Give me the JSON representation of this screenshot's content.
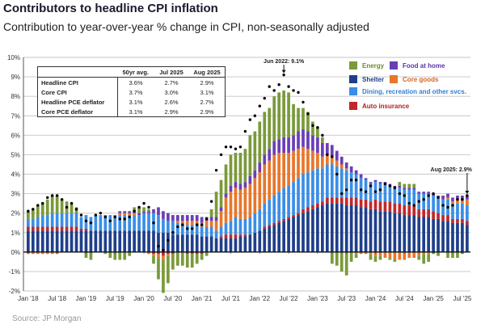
{
  "title": "Contributors to headline CPI inflation",
  "subtitle": "Contribution to year-over-year % change in CPI, non-seasonally adjusted",
  "source": "Source: JP Morgan",
  "table": {
    "headers": [
      "",
      "50yr avg.",
      "Jul 2025",
      "Aug 2025"
    ],
    "rows": [
      {
        "label": "Headline CPI",
        "values": [
          "3.6%",
          "2.7%",
          "2.9%"
        ]
      },
      {
        "label": "Core CPI",
        "values": [
          "3.7%",
          "3.0%",
          "3.1%"
        ]
      },
      {
        "label": "Headline PCE deflator",
        "values": [
          "3.1%",
          "2.6%",
          "2.7%"
        ]
      },
      {
        "label": "Core PCE deflator",
        "values": [
          "3.1%",
          "2.9%",
          "2.9%"
        ]
      }
    ]
  },
  "colors": {
    "energy": "#7a9a3a",
    "food": "#6a3fb5",
    "shelter": "#1f3f8a",
    "core_goods": "#e8762a",
    "services": "#3a8ee6",
    "auto": "#c0282b",
    "headline": "#000000"
  },
  "chart_data": {
    "type": "bar",
    "stacked": true,
    "title": "Contributors to headline CPI inflation",
    "subtitle": "Contribution to year-over-year % change in CPI, non-seasonally adjusted",
    "xlabel": "",
    "ylabel": "",
    "ylim": [
      -2,
      10
    ],
    "yticks": [
      "-2%",
      "-1%",
      "0%",
      "1%",
      "2%",
      "3%",
      "4%",
      "5%",
      "6%",
      "7%",
      "8%",
      "9%",
      "10%"
    ],
    "xticks": [
      "Jan '18",
      "Jul '18",
      "Jan '19",
      "Jul '19",
      "Jan '20",
      "Jul '20",
      "Jan '21",
      "Jul '21",
      "Jan '22",
      "Jul '22",
      "Jan '23",
      "Jul '23",
      "Jan '24",
      "Jul '24",
      "Jan '25",
      "Jul '25"
    ],
    "x_start": "Jan 2018",
    "x_end": "Aug 2025",
    "grid": true,
    "legend_position": "top-right",
    "legend": [
      {
        "key": "energy",
        "label": "Energy"
      },
      {
        "key": "food",
        "label": "Food at home"
      },
      {
        "key": "shelter",
        "label": "Shelter"
      },
      {
        "key": "core_goods",
        "label": "Core goods"
      },
      {
        "key": "services",
        "label": "Dining, recreation and other svcs."
      },
      {
        "key": "auto",
        "label": "Auto insurance"
      }
    ],
    "annotations": [
      {
        "label": "Jun 2022: 9.1%",
        "month_index": 53
      },
      {
        "label": "Aug 2025: 2.9%",
        "month_index": 91
      }
    ],
    "series": [
      {
        "name": "Shelter",
        "key": "shelter",
        "values": [
          1.1,
          1.1,
          1.1,
          1.1,
          1.1,
          1.1,
          1.1,
          1.1,
          1.1,
          1.1,
          1.1,
          1.1,
          1.1,
          1.1,
          1.1,
          1.1,
          1.1,
          1.1,
          1.1,
          1.1,
          1.1,
          1.1,
          1.1,
          1.1,
          1.1,
          1.1,
          1.1,
          1.0,
          1.0,
          1.0,
          0.9,
          0.9,
          0.9,
          0.9,
          0.9,
          0.9,
          0.8,
          0.8,
          0.8,
          0.7,
          0.7,
          0.7,
          0.7,
          0.7,
          0.8,
          0.8,
          0.9,
          1.0,
          1.1,
          1.2,
          1.3,
          1.4,
          1.5,
          1.6,
          1.7,
          1.8,
          1.9,
          2.0,
          2.1,
          2.2,
          2.3,
          2.4,
          2.5,
          2.5,
          2.5,
          2.5,
          2.4,
          2.4,
          2.4,
          2.3,
          2.3,
          2.2,
          2.2,
          2.1,
          2.1,
          2.1,
          2.0,
          2.0,
          1.9,
          1.9,
          1.9,
          1.8,
          1.8,
          1.8,
          1.7,
          1.7,
          1.6,
          1.6,
          1.5,
          1.5,
          1.5,
          1.4
        ]
      },
      {
        "name": "Auto insurance",
        "key": "auto",
        "values": [
          0.2,
          0.2,
          0.2,
          0.2,
          0.2,
          0.2,
          0.2,
          0.2,
          0.2,
          0.2,
          0.2,
          0.1,
          0.1,
          0.0,
          0.0,
          0.0,
          0.0,
          0.0,
          0.0,
          0.0,
          0.0,
          0.0,
          0.0,
          0.0,
          0.0,
          0.0,
          -0.1,
          -0.1,
          -0.2,
          -0.1,
          -0.1,
          0.0,
          0.0,
          -0.1,
          -0.1,
          -0.1,
          -0.1,
          0.0,
          0.0,
          0.0,
          0.1,
          0.2,
          0.2,
          0.2,
          0.1,
          0.1,
          0.0,
          0.0,
          0.0,
          0.1,
          0.1,
          0.1,
          0.1,
          0.1,
          0.1,
          0.1,
          0.1,
          0.2,
          0.2,
          0.2,
          0.2,
          0.2,
          0.3,
          0.3,
          0.3,
          0.3,
          0.4,
          0.4,
          0.4,
          0.4,
          0.4,
          0.4,
          0.5,
          0.5,
          0.5,
          0.5,
          0.5,
          0.5,
          0.5,
          0.5,
          0.5,
          0.4,
          0.4,
          0.4,
          0.4,
          0.3,
          0.3,
          0.3,
          0.2,
          0.2,
          0.2,
          0.2
        ]
      },
      {
        "name": "Dining, recreation and other svcs.",
        "key": "services",
        "values": [
          0.4,
          0.4,
          0.5,
          0.6,
          0.6,
          0.7,
          0.7,
          0.7,
          0.7,
          0.7,
          0.7,
          0.6,
          0.7,
          0.7,
          0.8,
          0.8,
          0.8,
          0.8,
          0.8,
          0.8,
          0.8,
          0.8,
          0.8,
          0.8,
          0.9,
          0.9,
          0.9,
          0.9,
          0.7,
          0.6,
          0.7,
          0.6,
          0.5,
          0.5,
          0.5,
          0.5,
          0.5,
          0.5,
          0.5,
          0.4,
          0.5,
          0.6,
          0.7,
          0.9,
          0.8,
          0.8,
          0.9,
          1.0,
          1.1,
          1.2,
          1.3,
          1.4,
          1.5,
          1.6,
          1.6,
          1.7,
          1.8,
          1.8,
          1.8,
          1.8,
          1.8,
          1.7,
          1.7,
          1.7,
          1.6,
          1.5,
          1.4,
          1.3,
          1.2,
          1.1,
          1.0,
          0.9,
          0.9,
          0.9,
          0.9,
          0.8,
          0.8,
          0.8,
          0.8,
          0.8,
          0.8,
          0.8,
          0.8,
          0.8,
          0.8,
          0.8,
          0.8,
          0.8,
          0.8,
          0.8,
          0.8,
          0.8
        ]
      },
      {
        "name": "Core goods",
        "key": "core_goods",
        "values": [
          -0.1,
          -0.1,
          -0.1,
          -0.1,
          -0.1,
          -0.1,
          -0.1,
          0.0,
          0.0,
          0.0,
          0.0,
          0.0,
          0.0,
          0.0,
          0.0,
          0.0,
          0.0,
          0.0,
          0.0,
          0.1,
          0.1,
          0.1,
          0.1,
          0.0,
          0.0,
          -0.1,
          -0.1,
          -0.2,
          -0.2,
          -0.1,
          0.0,
          0.1,
          0.2,
          0.2,
          0.2,
          0.2,
          0.2,
          0.3,
          0.3,
          0.5,
          0.8,
          1.3,
          1.5,
          1.5,
          1.5,
          1.6,
          1.7,
          1.8,
          1.9,
          2.0,
          2.0,
          2.1,
          2.0,
          1.8,
          1.7,
          1.6,
          1.5,
          1.4,
          1.2,
          1.0,
          0.8,
          0.6,
          0.5,
          0.4,
          0.3,
          0.2,
          0.1,
          0.0,
          -0.1,
          -0.1,
          -0.1,
          -0.1,
          -0.2,
          -0.2,
          -0.3,
          -0.3,
          -0.4,
          -0.4,
          -0.4,
          -0.3,
          -0.3,
          -0.2,
          -0.1,
          -0.1,
          0.0,
          0.0,
          0.0,
          0.1,
          0.1,
          0.2,
          0.2,
          0.3
        ]
      },
      {
        "name": "Food at home",
        "key": "food",
        "values": [
          0.0,
          0.0,
          0.0,
          0.0,
          0.0,
          0.0,
          0.0,
          0.0,
          0.0,
          0.0,
          0.0,
          0.0,
          0.0,
          0.0,
          0.0,
          0.0,
          0.0,
          0.0,
          0.0,
          0.1,
          0.1,
          0.1,
          0.1,
          0.1,
          0.1,
          0.1,
          0.2,
          0.4,
          0.4,
          0.4,
          0.3,
          0.3,
          0.3,
          0.3,
          0.3,
          0.3,
          0.3,
          0.2,
          0.2,
          0.2,
          0.2,
          0.2,
          0.3,
          0.3,
          0.3,
          0.3,
          0.4,
          0.4,
          0.5,
          0.5,
          0.6,
          0.7,
          0.7,
          0.8,
          0.8,
          0.8,
          0.9,
          0.9,
          0.9,
          0.8,
          0.8,
          0.7,
          0.6,
          0.6,
          0.5,
          0.4,
          0.3,
          0.3,
          0.2,
          0.2,
          0.1,
          0.1,
          0.1,
          0.1,
          0.1,
          0.1,
          0.1,
          0.1,
          0.1,
          0.1,
          0.1,
          0.1,
          0.1,
          0.1,
          0.1,
          0.1,
          0.2,
          0.2,
          0.2,
          0.2,
          0.2,
          0.2
        ]
      },
      {
        "name": "Energy",
        "key": "energy",
        "values": [
          0.4,
          0.5,
          0.6,
          0.6,
          0.8,
          0.9,
          0.9,
          0.7,
          0.6,
          0.5,
          0.3,
          0.0,
          -0.3,
          -0.4,
          0.0,
          0.0,
          -0.1,
          -0.3,
          -0.4,
          -0.4,
          -0.4,
          -0.2,
          0.2,
          0.3,
          0.2,
          0.1,
          -0.4,
          -1.1,
          -1.7,
          -1.4,
          -0.8,
          -0.7,
          -0.7,
          -0.7,
          -0.7,
          -0.5,
          -0.3,
          -0.2,
          0.4,
          1.3,
          1.4,
          1.5,
          1.6,
          1.5,
          1.6,
          1.7,
          2.1,
          2.0,
          2.1,
          2.2,
          2.1,
          2.3,
          2.4,
          2.4,
          2.3,
          1.6,
          1.2,
          1.1,
          1.0,
          0.7,
          0.5,
          0.3,
          0.0,
          -0.6,
          -0.7,
          -1.0,
          -1.2,
          -0.5,
          -0.2,
          0.0,
          0.0,
          -0.3,
          -0.3,
          -0.2,
          0.0,
          -0.1,
          -0.1,
          0.2,
          0.2,
          0.2,
          0.2,
          -0.2,
          -0.5,
          -0.4,
          -0.1,
          -0.2,
          0.0,
          -0.3,
          -0.3,
          -0.3,
          -0.1,
          0.0
        ]
      },
      {
        "name": "Headline CPI",
        "key": "headline",
        "type": "scatter",
        "values": [
          2.1,
          2.2,
          2.4,
          2.5,
          2.8,
          2.9,
          2.9,
          2.7,
          2.3,
          2.5,
          2.2,
          1.9,
          1.6,
          1.5,
          1.9,
          2.0,
          1.8,
          1.6,
          1.8,
          1.7,
          1.7,
          1.8,
          2.1,
          2.3,
          2.5,
          2.3,
          1.5,
          0.3,
          0.1,
          0.6,
          1.0,
          1.3,
          1.4,
          1.2,
          1.2,
          1.4,
          1.4,
          1.7,
          2.6,
          4.2,
          5.0,
          5.4,
          5.4,
          5.3,
          5.4,
          6.2,
          6.8,
          7.0,
          7.5,
          7.9,
          8.5,
          8.3,
          8.6,
          9.1,
          8.5,
          8.3,
          8.2,
          7.7,
          7.1,
          6.5,
          6.4,
          6.0,
          5.0,
          4.9,
          4.0,
          3.0,
          3.2,
          3.7,
          3.7,
          3.2,
          3.1,
          3.4,
          3.1,
          3.2,
          3.5,
          3.4,
          3.3,
          3.0,
          2.9,
          2.5,
          2.4,
          2.6,
          2.7,
          2.9,
          3.0,
          2.8,
          2.4,
          2.3,
          2.4,
          2.7,
          2.7,
          2.9
        ]
      }
    ]
  }
}
